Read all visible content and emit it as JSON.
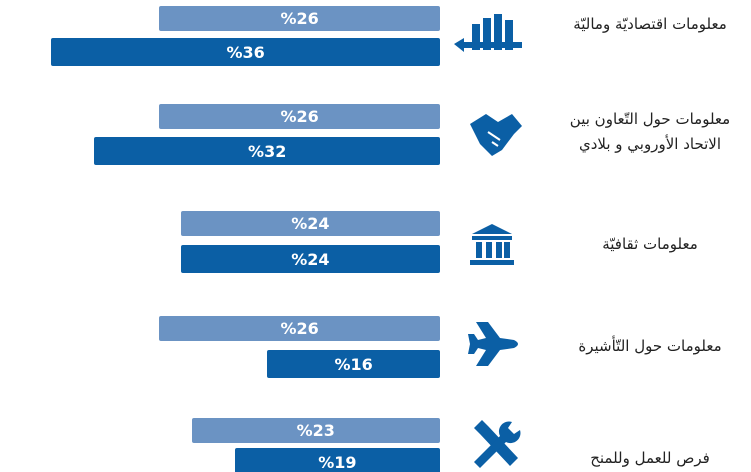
{
  "chart_data": {
    "type": "bar",
    "orientation": "horizontal",
    "categories": [
      "معلومات اقتصاديّة وماليّة",
      "معلومات حول التّعاون بين الاتحاد الأوروبي و بلادي",
      "معلومات ثقافيّة",
      "معلومات حول التّأشيرة",
      "فرص للعمل وللمنح"
    ],
    "series": [
      {
        "color": "#6b93c3",
        "values": [
          26,
          26,
          24,
          26,
          23
        ],
        "value_labels": [
          "%26",
          "%26",
          "%24",
          "%26",
          "%23"
        ]
      },
      {
        "color": "#0b5fa5",
        "values": [
          36,
          32,
          24,
          16,
          19
        ],
        "value_labels": [
          "%36",
          "%32",
          "%24",
          "%16",
          "%19"
        ]
      }
    ]
  }
}
